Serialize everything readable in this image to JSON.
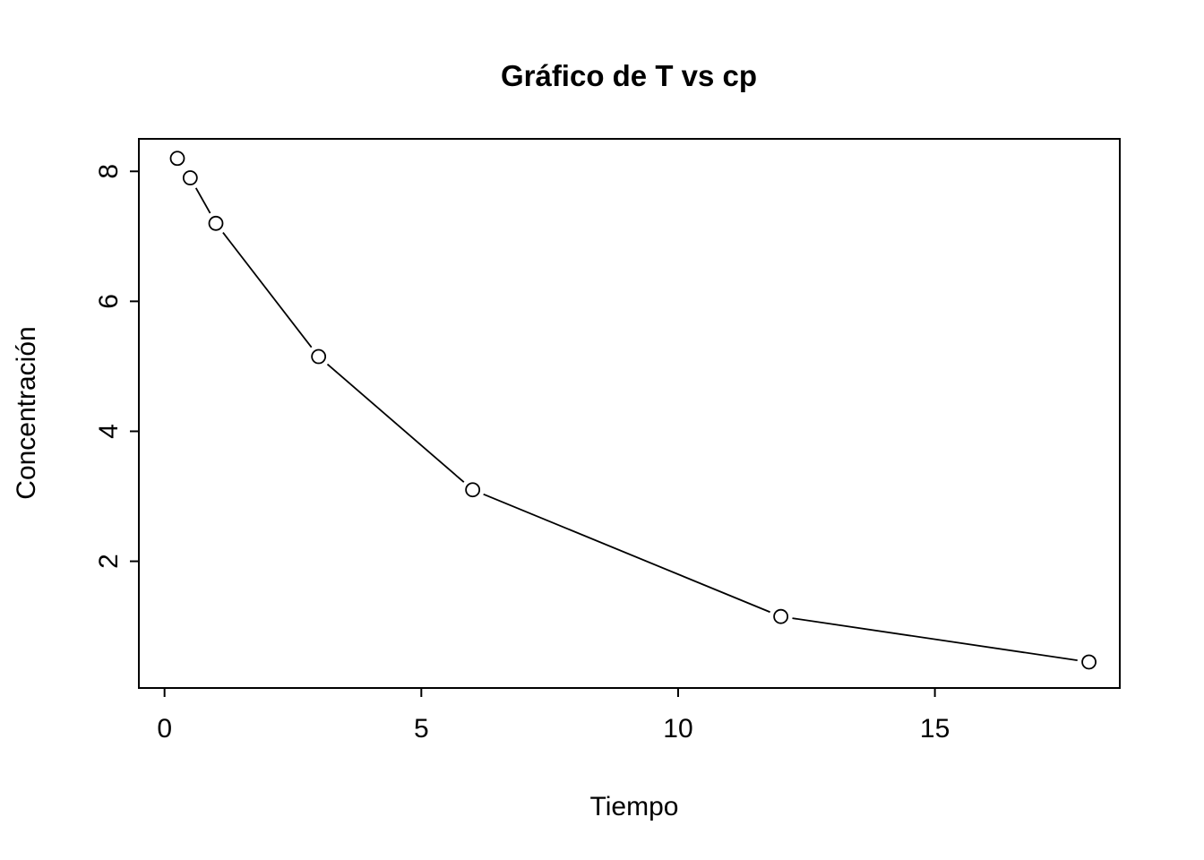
{
  "chart_data": {
    "type": "line",
    "title": "Gráfico de T vs cp",
    "xlabel": "Tiempo",
    "ylabel": "Concentración",
    "x": [
      0.25,
      0.5,
      1,
      3,
      6,
      12,
      18
    ],
    "y": [
      8.2,
      7.9,
      7.2,
      5.15,
      3.1,
      1.15,
      0.45
    ],
    "series_name": "cp",
    "marker": "open-circle",
    "line_between_points": true,
    "xlim": [
      -0.5,
      18.6
    ],
    "ylim": [
      0.05,
      8.5
    ],
    "xticks": [
      0,
      5,
      10,
      15
    ],
    "yticks": [
      2,
      4,
      6,
      8
    ],
    "grid": false,
    "legend": false,
    "colors": {
      "background": "#ffffff",
      "line": "#000000",
      "marker_stroke": "#000000",
      "marker_fill": "#ffffff",
      "text": "#000000"
    }
  }
}
